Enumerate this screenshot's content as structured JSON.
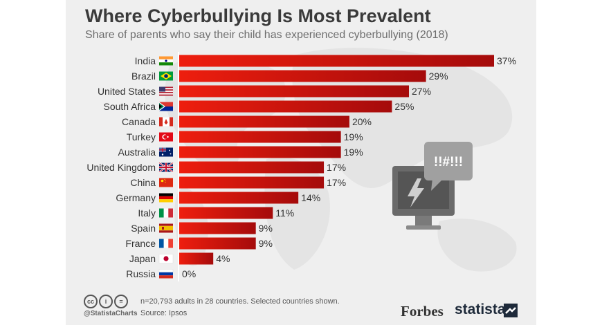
{
  "header": {
    "title": "Where Cyberbullying Is Most Prevalent",
    "subtitle": "Share of parents who say their child has experienced cyberbullying (2018)"
  },
  "chart_data": {
    "type": "bar",
    "orientation": "horizontal",
    "categories": [
      "India",
      "Brazil",
      "United States",
      "South Africa",
      "Canada",
      "Turkey",
      "Australia",
      "United Kingdom",
      "China",
      "Germany",
      "Italy",
      "Spain",
      "France",
      "Japan",
      "Russia"
    ],
    "values": [
      37,
      29,
      27,
      25,
      20,
      19,
      19,
      17,
      17,
      14,
      11,
      9,
      9,
      4,
      0
    ],
    "value_labels": [
      "37%",
      "29%",
      "27%",
      "25%",
      "20%",
      "19%",
      "19%",
      "17%",
      "17%",
      "14%",
      "11%",
      "9%",
      "9%",
      "4%",
      "0%"
    ],
    "unit": "%",
    "title": "Where Cyberbullying Is Most Prevalent",
    "subtitle": "Share of parents who say their child has experienced cyberbullying (2018)",
    "xlim": [
      0,
      37
    ],
    "grid": false,
    "legend": "none",
    "flag_icons": [
      "india-flag-icon",
      "brazil-flag-icon",
      "united-states-flag-icon",
      "south-africa-flag-icon",
      "canada-flag-icon",
      "turkey-flag-icon",
      "australia-flag-icon",
      "united-kingdom-flag-icon",
      "china-flag-icon",
      "germany-flag-icon",
      "italy-flag-icon",
      "spain-flag-icon",
      "france-flag-icon",
      "japan-flag-icon",
      "russia-flag-icon"
    ]
  },
  "illustration": {
    "bubble_text": "!!#!!!",
    "icons": [
      "monitor-icon",
      "lightning-icon",
      "speech-bubble-icon",
      "world-map-background"
    ]
  },
  "footer": {
    "handle": "@StatistaCharts",
    "note": "n=20,793 adults in 28 countries. Selected countries shown.",
    "source": "Source: Ipsos",
    "license_icons": [
      "cc-icon",
      "by-icon",
      "nd-icon"
    ],
    "cc_label": "cc",
    "by_label": "i",
    "nd_label": "=",
    "logo_forbes": "Forbes",
    "logo_statista": "statista"
  },
  "colors": {
    "bar_start": "#ee1e0e",
    "bar_end": "#a50b0b",
    "background": "#efefef",
    "title": "#3a3a3a",
    "axis_line": "#ffffff"
  }
}
